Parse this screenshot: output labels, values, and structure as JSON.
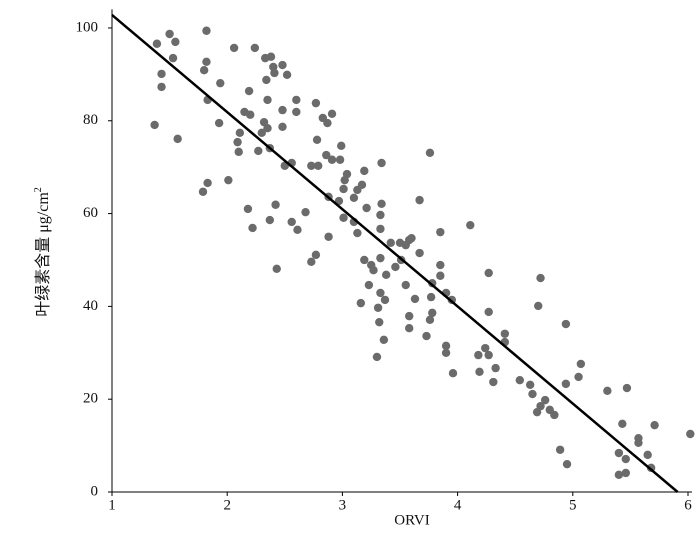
{
  "chart_data": {
    "type": "scatter",
    "xlabel": "ORVI",
    "ylabel": "叶绿素含量  μg/cm",
    "ylabel_sup": "2",
    "color": "#6b6b6b",
    "line_color": "#000000",
    "xlim": [
      1,
      6
    ],
    "ylim": [
      0,
      104
    ],
    "xticks": [
      1,
      2,
      3,
      4,
      5,
      6
    ],
    "yticks": [
      0,
      20,
      40,
      60,
      80,
      100
    ],
    "grid": false,
    "fit_line": {
      "x": [
        1,
        5.91
      ],
      "y": [
        102.8,
        0
      ]
    },
    "x": [
      1.39,
      1.43,
      1.43,
      1.37,
      1.5,
      1.55,
      1.53,
      1.57,
      1.82,
      1.82,
      1.8,
      1.83,
      1.83,
      1.79,
      1.94,
      1.93,
      2.01,
      2.06,
      2.11,
      2.09,
      2.1,
      2.15,
      2.19,
      2.2,
      2.24,
      2.27,
      2.22,
      2.18,
      2.33,
      2.34,
      2.3,
      2.32,
      2.35,
      2.35,
      2.37,
      2.38,
      2.4,
      2.41,
      2.48,
      2.52,
      2.48,
      2.48,
      2.42,
      2.37,
      2.43,
      2.5,
      2.56,
      2.6,
      2.6,
      2.56,
      2.61,
      2.68,
      2.73,
      2.77,
      2.78,
      2.79,
      2.83,
      2.87,
      2.91,
      2.86,
      2.91,
      2.88,
      2.99,
      2.98,
      3.02,
      3.01,
      2.97,
      3.01,
      2.88,
      2.77,
      2.73,
      3.04,
      3.1,
      3.13,
      3.19,
      3.17,
      3.21,
      3.1,
      3.13,
      3.19,
      3.25,
      3.27,
      3.23,
      3.16,
      3.34,
      3.34,
      3.33,
      3.33,
      3.33,
      3.42,
      3.46,
      3.38,
      3.33,
      3.37,
      3.31,
      3.32,
      3.36,
      3.3,
      3.5,
      3.55,
      3.58,
      3.6,
      3.51,
      3.55,
      3.58,
      3.58,
      3.63,
      3.67,
      3.67,
      3.76,
      3.78,
      3.77,
      3.78,
      3.76,
      3.73,
      3.85,
      3.85,
      3.85,
      3.9,
      3.95,
      3.9,
      3.9,
      3.96,
      4.11,
      4.18,
      4.19,
      4.24,
      4.27,
      4.27,
      4.27,
      4.31,
      4.33,
      4.41,
      4.41,
      4.54,
      4.63,
      4.65,
      4.7,
      4.72,
      4.69,
      4.72,
      4.76,
      4.8,
      4.84,
      4.89,
      4.95,
      4.94,
      4.94,
      5.05,
      5.07,
      5.3,
      5.47,
      5.43,
      5.4,
      5.4,
      5.46,
      5.46,
      5.57,
      5.57,
      5.65,
      5.68,
      5.71,
      6.02
    ],
    "values": [
      96.6,
      90.1,
      87.3,
      79.1,
      98.7,
      97.0,
      93.5,
      76.1,
      99.4,
      92.7,
      90.9,
      84.5,
      66.6,
      64.7,
      88.1,
      79.5,
      67.2,
      95.7,
      77.4,
      75.4,
      73.3,
      81.9,
      86.4,
      81.3,
      95.7,
      73.5,
      56.9,
      61.0,
      93.5,
      88.8,
      77.4,
      79.7,
      84.5,
      78.4,
      74.1,
      93.8,
      91.6,
      90.3,
      92.0,
      89.9,
      82.3,
      78.7,
      61.9,
      58.6,
      48.1,
      70.3,
      70.9,
      84.5,
      81.9,
      58.2,
      56.5,
      60.3,
      70.3,
      83.8,
      75.9,
      70.3,
      80.6,
      79.5,
      81.5,
      72.6,
      71.6,
      63.6,
      74.6,
      71.6,
      67.2,
      65.3,
      62.7,
      59.1,
      55.0,
      51.1,
      49.6,
      68.5,
      63.4,
      65.1,
      69.2,
      66.2,
      61.2,
      58.2,
      55.8,
      50.0,
      48.9,
      47.8,
      44.6,
      40.7,
      70.9,
      62.1,
      59.7,
      56.7,
      50.4,
      53.7,
      48.5,
      46.8,
      42.9,
      41.4,
      39.7,
      36.6,
      32.8,
      29.1,
      53.7,
      53.2,
      54.3,
      54.7,
      50.0,
      44.6,
      37.9,
      35.3,
      41.6,
      51.5,
      62.9,
      73.1,
      45.0,
      42.0,
      38.6,
      37.1,
      33.6,
      56.0,
      48.9,
      46.6,
      42.9,
      41.4,
      31.5,
      30.0,
      25.6,
      57.5,
      29.5,
      25.9,
      31.0,
      38.8,
      47.2,
      29.5,
      23.7,
      26.7,
      34.1,
      32.3,
      24.1,
      23.1,
      21.1,
      40.1,
      46.1,
      17.2,
      18.5,
      19.8,
      17.7,
      16.6,
      9.1,
      6.0,
      23.3,
      36.2,
      24.8,
      27.6,
      21.8,
      22.4,
      14.7,
      8.4,
      3.7,
      7.1,
      4.1,
      11.6,
      10.6,
      8.0,
      5.2,
      14.4,
      12.5
    ]
  }
}
